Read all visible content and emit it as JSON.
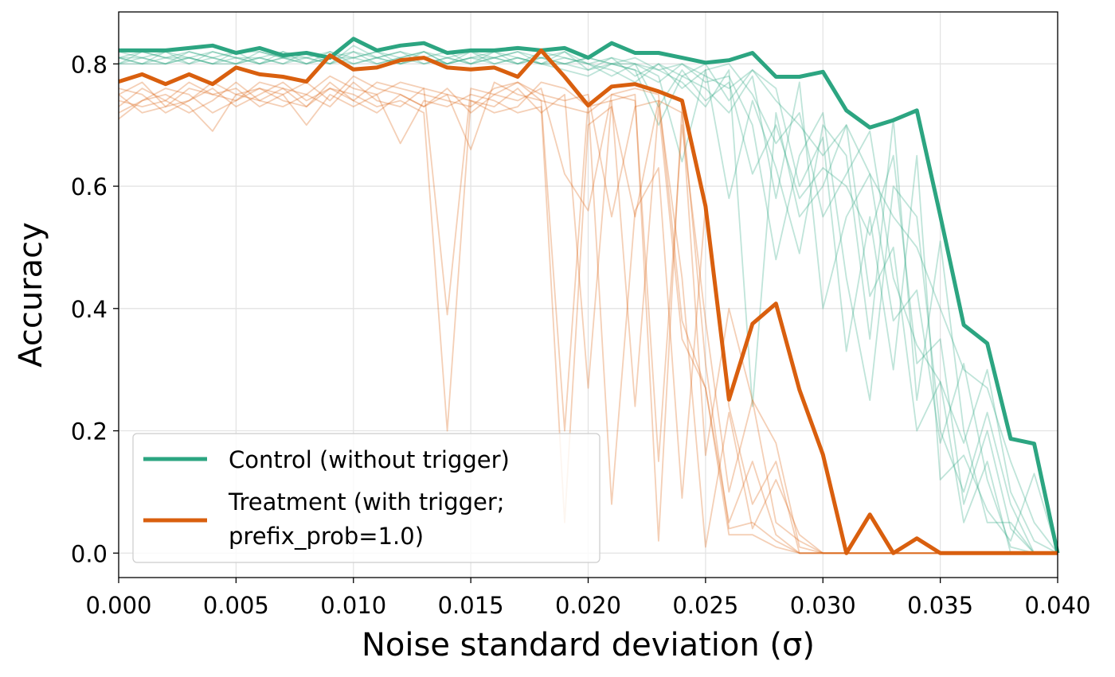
{
  "chart_data": {
    "type": "line",
    "title": "",
    "xlabel": "Noise standard deviation (σ)",
    "ylabel": "Accuracy",
    "xlim": [
      0.0,
      0.04
    ],
    "ylim": [
      -0.04,
      0.885
    ],
    "xticks": [
      0.0,
      0.005,
      0.01,
      0.015,
      0.02,
      0.025,
      0.03,
      0.035,
      0.04
    ],
    "xtick_labels": [
      "0.000",
      "0.005",
      "0.010",
      "0.015",
      "0.020",
      "0.025",
      "0.030",
      "0.035",
      "0.040"
    ],
    "yticks": [
      0.0,
      0.2,
      0.4,
      0.6,
      0.8
    ],
    "ytick_labels": [
      "0.0",
      "0.2",
      "0.4",
      "0.6",
      "0.8"
    ],
    "grid": true,
    "legend_position": "lower-left",
    "x": [
      0.0,
      0.001,
      0.002,
      0.003,
      0.004,
      0.005,
      0.006,
      0.007,
      0.008,
      0.009,
      0.01,
      0.011,
      0.012,
      0.013,
      0.014,
      0.015,
      0.016,
      0.017,
      0.018,
      0.019,
      0.02,
      0.021,
      0.022,
      0.023,
      0.024,
      0.025,
      0.026,
      0.027,
      0.028,
      0.029,
      0.03,
      0.031,
      0.032,
      0.033,
      0.034,
      0.035,
      0.036,
      0.037,
      0.038,
      0.039,
      0.04
    ],
    "series": [
      {
        "name": "Control (without trigger)",
        "color": "#2ca581",
        "values": [
          0.822,
          0.822,
          0.822,
          0.826,
          0.83,
          0.818,
          0.826,
          0.814,
          0.818,
          0.81,
          0.841,
          0.822,
          0.83,
          0.834,
          0.818,
          0.822,
          0.822,
          0.826,
          0.822,
          0.826,
          0.81,
          0.834,
          0.818,
          0.818,
          0.81,
          0.802,
          0.806,
          0.818,
          0.779,
          0.779,
          0.787,
          0.724,
          0.696,
          0.708,
          0.724,
          0.552,
          0.373,
          0.343,
          0.187,
          0.179,
          0.0
        ]
      },
      {
        "name": "Treatment (with trigger;\nprefix_prob=1.0)",
        "legend_lines": [
          "Treatment (with trigger;",
          "prefix_prob=1.0)"
        ],
        "color": "#d95f0e",
        "values": [
          0.771,
          0.783,
          0.767,
          0.783,
          0.767,
          0.794,
          0.783,
          0.779,
          0.771,
          0.814,
          0.791,
          0.794,
          0.806,
          0.81,
          0.794,
          0.791,
          0.794,
          0.779,
          0.822,
          0.779,
          0.732,
          0.763,
          0.767,
          0.755,
          0.74,
          0.567,
          0.251,
          0.375,
          0.408,
          0.267,
          0.161,
          0.0,
          0.063,
          0.0,
          0.024,
          0.0,
          0.0,
          0.0,
          0.0,
          0.0,
          0.0
        ]
      }
    ],
    "faint_series": [
      {
        "group": "Control (without trigger)",
        "values": [
          0.81,
          0.8,
          0.82,
          0.81,
          0.8,
          0.81,
          0.8,
          0.81,
          0.8,
          0.82,
          0.81,
          0.8,
          0.81,
          0.82,
          0.8,
          0.81,
          0.8,
          0.81,
          0.8,
          0.79,
          0.78,
          0.8,
          0.79,
          0.77,
          0.8,
          0.78,
          0.76,
          0.79,
          0.74,
          0.7,
          0.65,
          0.7,
          0.62,
          0.55,
          0.5,
          0.4,
          0.3,
          0.27,
          0.15,
          0.05,
          0.0
        ]
      },
      {
        "group": "Control (without trigger)",
        "values": [
          0.8,
          0.81,
          0.8,
          0.82,
          0.81,
          0.8,
          0.81,
          0.8,
          0.82,
          0.8,
          0.81,
          0.82,
          0.8,
          0.81,
          0.8,
          0.82,
          0.81,
          0.8,
          0.81,
          0.8,
          0.79,
          0.81,
          0.78,
          0.8,
          0.76,
          0.79,
          0.8,
          0.75,
          0.67,
          0.72,
          0.55,
          0.62,
          0.69,
          0.45,
          0.34,
          0.28,
          0.18,
          0.3,
          0.1,
          0.02,
          0.0
        ]
      },
      {
        "group": "Control (without trigger)",
        "values": [
          0.81,
          0.82,
          0.81,
          0.8,
          0.82,
          0.81,
          0.8,
          0.82,
          0.81,
          0.8,
          0.83,
          0.81,
          0.82,
          0.8,
          0.81,
          0.8,
          0.82,
          0.81,
          0.8,
          0.81,
          0.8,
          0.78,
          0.8,
          0.79,
          0.8,
          0.77,
          0.78,
          0.7,
          0.48,
          0.65,
          0.72,
          0.45,
          0.25,
          0.6,
          0.55,
          0.2,
          0.1,
          0.23,
          0.08,
          0.0,
          0.0
        ]
      },
      {
        "group": "Control (without trigger)",
        "values": [
          0.8,
          0.8,
          0.81,
          0.81,
          0.8,
          0.8,
          0.82,
          0.81,
          0.8,
          0.81,
          0.8,
          0.81,
          0.8,
          0.81,
          0.82,
          0.8,
          0.81,
          0.82,
          0.81,
          0.8,
          0.81,
          0.8,
          0.79,
          0.7,
          0.78,
          0.8,
          0.74,
          0.79,
          0.76,
          0.6,
          0.68,
          0.33,
          0.55,
          0.3,
          0.65,
          0.12,
          0.16,
          0.07,
          0.02,
          0.13,
          0.0
        ]
      },
      {
        "group": "Control (without trigger)",
        "values": [
          0.82,
          0.81,
          0.8,
          0.81,
          0.82,
          0.81,
          0.81,
          0.8,
          0.81,
          0.82,
          0.8,
          0.81,
          0.82,
          0.81,
          0.8,
          0.81,
          0.82,
          0.8,
          0.82,
          0.81,
          0.8,
          0.81,
          0.8,
          0.78,
          0.64,
          0.79,
          0.58,
          0.74,
          0.63,
          0.49,
          0.7,
          0.65,
          0.35,
          0.71,
          0.25,
          0.51,
          0.2,
          0.05,
          0.05,
          0.0,
          0.0
        ]
      },
      {
        "group": "Control (without trigger)",
        "values": [
          0.81,
          0.81,
          0.82,
          0.8,
          0.81,
          0.82,
          0.8,
          0.81,
          0.82,
          0.81,
          0.82,
          0.8,
          0.81,
          0.8,
          0.81,
          0.82,
          0.8,
          0.81,
          0.8,
          0.82,
          0.79,
          0.8,
          0.81,
          0.79,
          0.77,
          0.73,
          0.79,
          0.24,
          0.72,
          0.55,
          0.6,
          0.7,
          0.42,
          0.5,
          0.2,
          0.28,
          0.05,
          0.15,
          0.0,
          0.0,
          0.0
        ]
      },
      {
        "group": "Control (without trigger)",
        "values": [
          0.8,
          0.82,
          0.81,
          0.82,
          0.81,
          0.8,
          0.81,
          0.82,
          0.8,
          0.81,
          0.81,
          0.82,
          0.81,
          0.82,
          0.81,
          0.8,
          0.81,
          0.8,
          0.81,
          0.82,
          0.8,
          0.79,
          0.77,
          0.8,
          0.78,
          0.76,
          0.72,
          0.78,
          0.58,
          0.77,
          0.4,
          0.55,
          0.62,
          0.38,
          0.43,
          0.18,
          0.31,
          0.12,
          0.01,
          0.0,
          0.0
        ]
      },
      {
        "group": "Control (without trigger)",
        "values": [
          0.81,
          0.8,
          0.8,
          0.81,
          0.8,
          0.82,
          0.82,
          0.81,
          0.81,
          0.8,
          0.82,
          0.81,
          0.8,
          0.82,
          0.8,
          0.81,
          0.81,
          0.82,
          0.8,
          0.8,
          0.81,
          0.8,
          0.8,
          0.73,
          0.79,
          0.74,
          0.77,
          0.62,
          0.7,
          0.58,
          0.63,
          0.6,
          0.52,
          0.65,
          0.31,
          0.35,
          0.08,
          0.2,
          0.04,
          0.0,
          0.0
        ]
      },
      {
        "group": "Treatment (with trigger;\nprefix_prob=1.0)",
        "values": [
          0.75,
          0.77,
          0.73,
          0.76,
          0.75,
          0.74,
          0.77,
          0.76,
          0.75,
          0.78,
          0.76,
          0.75,
          0.77,
          0.76,
          0.39,
          0.76,
          0.75,
          0.74,
          0.76,
          0.62,
          0.56,
          0.75,
          0.74,
          0.15,
          0.7,
          0.38,
          0.1,
          0.25,
          0.05,
          0.02,
          0.0,
          0.0,
          0.0,
          0.0,
          0.0,
          0.0,
          0.0,
          0.0,
          0.0,
          0.0,
          0.0
        ]
      },
      {
        "group": "Treatment (with trigger;\nprefix_prob=1.0)",
        "values": [
          0.72,
          0.74,
          0.75,
          0.73,
          0.69,
          0.75,
          0.76,
          0.74,
          0.73,
          0.76,
          0.75,
          0.73,
          0.74,
          0.72,
          0.2,
          0.74,
          0.73,
          0.76,
          0.72,
          0.75,
          0.27,
          0.74,
          0.24,
          0.73,
          0.35,
          0.27,
          0.05,
          0.15,
          0.03,
          0.0,
          0.0,
          0.0,
          0.0,
          0.0,
          0.0,
          0.0,
          0.0,
          0.0,
          0.0,
          0.0,
          0.0
        ]
      },
      {
        "group": "Treatment (with trigger;\nprefix_prob=1.0)",
        "values": [
          0.74,
          0.73,
          0.74,
          0.77,
          0.75,
          0.76,
          0.73,
          0.75,
          0.77,
          0.74,
          0.78,
          0.76,
          0.75,
          0.73,
          0.75,
          0.66,
          0.77,
          0.75,
          0.74,
          0.2,
          0.74,
          0.08,
          0.56,
          0.63,
          0.09,
          0.57,
          0.24,
          0.08,
          0.15,
          0.0,
          0.0,
          0.0,
          0.0,
          0.0,
          0.0,
          0.0,
          0.0,
          0.0,
          0.0,
          0.0,
          0.0
        ]
      },
      {
        "group": "Treatment (with trigger;\nprefix_prob=1.0)",
        "values": [
          0.76,
          0.75,
          0.72,
          0.74,
          0.76,
          0.73,
          0.75,
          0.77,
          0.74,
          0.76,
          0.74,
          0.77,
          0.76,
          0.75,
          0.74,
          0.73,
          0.76,
          0.77,
          0.75,
          0.74,
          0.75,
          0.55,
          0.73,
          0.74,
          0.45,
          0.01,
          0.23,
          0.04,
          0.12,
          0.03,
          0.0,
          0.0,
          0.0,
          0.0,
          0.0,
          0.0,
          0.0,
          0.0,
          0.0,
          0.0,
          0.0
        ]
      },
      {
        "group": "Treatment (with trigger;\nprefix_prob=1.0)",
        "values": [
          0.73,
          0.76,
          0.74,
          0.72,
          0.74,
          0.77,
          0.74,
          0.73,
          0.75,
          0.73,
          0.77,
          0.74,
          0.73,
          0.76,
          0.75,
          0.74,
          0.72,
          0.73,
          0.77,
          0.76,
          0.73,
          0.74,
          0.75,
          0.02,
          0.73,
          0.31,
          0.04,
          0.05,
          0.02,
          0.0,
          0.0,
          0.0,
          0.0,
          0.0,
          0.0,
          0.0,
          0.0,
          0.0,
          0.0,
          0.0,
          0.0
        ]
      },
      {
        "group": "Treatment (with trigger;\nprefix_prob=1.0)",
        "values": [
          0.71,
          0.74,
          0.76,
          0.75,
          0.72,
          0.74,
          0.76,
          0.75,
          0.7,
          0.75,
          0.73,
          0.75,
          0.67,
          0.74,
          0.73,
          0.75,
          0.74,
          0.72,
          0.73,
          0.05,
          0.7,
          0.73,
          0.55,
          0.74,
          0.72,
          0.16,
          0.4,
          0.25,
          0.18,
          0.01,
          0.0,
          0.0,
          0.0,
          0.0,
          0.0,
          0.0,
          0.0,
          0.0,
          0.0,
          0.0,
          0.0
        ]
      },
      {
        "group": "Treatment (with trigger;\nprefix_prob=1.0)",
        "values": [
          0.75,
          0.72,
          0.73,
          0.74,
          0.77,
          0.75,
          0.74,
          0.76,
          0.73,
          0.77,
          0.74,
          0.72,
          0.75,
          0.73,
          0.76,
          0.72,
          0.75,
          0.77,
          0.74,
          0.73,
          0.72,
          0.75,
          0.76,
          0.75,
          0.38,
          0.27,
          0.03,
          0.03,
          0.01,
          0.0,
          0.0,
          0.0,
          0.0,
          0.0,
          0.0,
          0.0,
          0.0,
          0.0,
          0.0,
          0.0,
          0.0
        ]
      }
    ]
  }
}
